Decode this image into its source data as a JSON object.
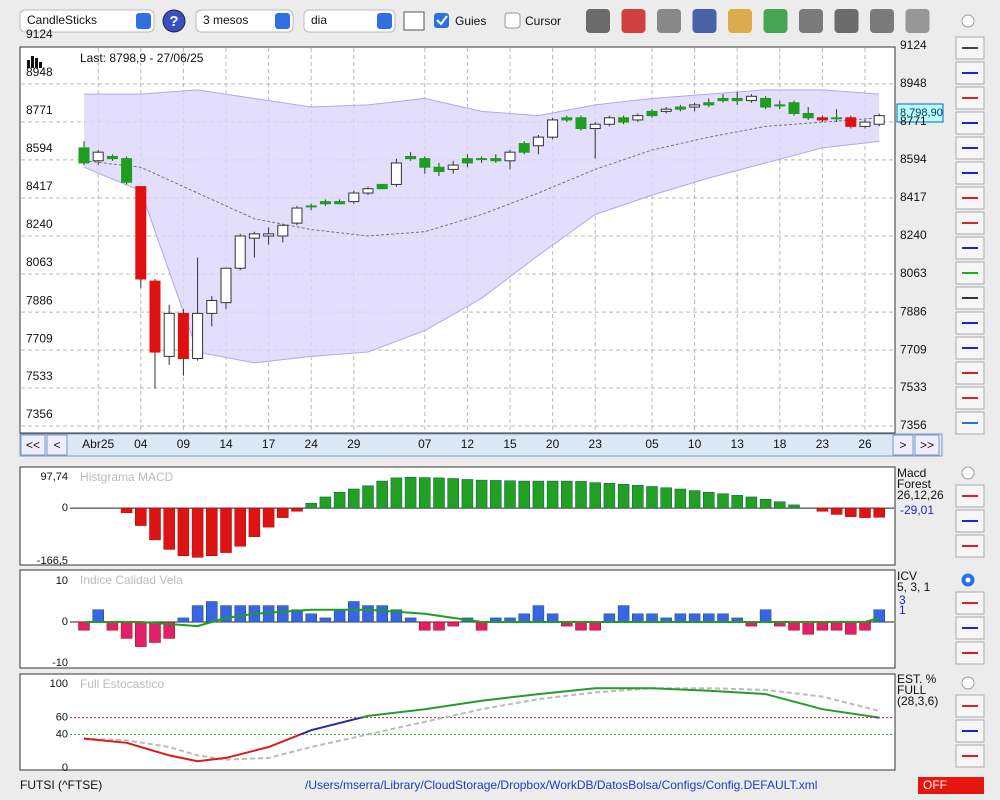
{
  "toolbar": {
    "chart_type": "CandleSticks",
    "period": "3 mesos",
    "interval": "dia",
    "guides": {
      "label": "Guies",
      "checked": true
    },
    "cursor": {
      "label": "Cursor",
      "checked": false
    }
  },
  "price_chart": {
    "type": "candlestick",
    "last": "Last: 8798,9 - 27/06/25",
    "price_tag": "8.798,90",
    "ylim": [
      7356,
      9124
    ],
    "yticks": [
      7356,
      7533,
      7709,
      7886,
      8063,
      8240,
      8417,
      8594,
      8771,
      8948,
      9124
    ],
    "colors": {
      "u": "#ffffff",
      "g": "#1e9e1e",
      "r": "#e01010"
    },
    "candles": [
      [
        8650,
        8680,
        8570,
        8580
      ],
      [
        8590,
        8640,
        8570,
        8630
      ],
      [
        8600,
        8620,
        8590,
        8610
      ],
      [
        8600,
        8610,
        8480,
        8490
      ],
      [
        8470,
        8470,
        8000,
        8040
      ],
      [
        8030,
        8040,
        7530,
        7700
      ],
      [
        7680,
        7920,
        7640,
        7880
      ],
      [
        7880,
        7900,
        7590,
        7670
      ],
      [
        7670,
        8140,
        7660,
        7880
      ],
      [
        7880,
        7960,
        7820,
        7940
      ],
      [
        7930,
        8090,
        7900,
        8090
      ],
      [
        8090,
        8250,
        8080,
        8240
      ],
      [
        8230,
        8260,
        8140,
        8250
      ],
      [
        8240,
        8280,
        8200,
        8250
      ],
      [
        8240,
        8290,
        8210,
        8290
      ],
      [
        8300,
        8380,
        8290,
        8370
      ],
      [
        8380,
        8390,
        8360,
        8380
      ],
      [
        8390,
        8410,
        8380,
        8400
      ],
      [
        8390,
        8410,
        8390,
        8400
      ],
      [
        8400,
        8450,
        8390,
        8440
      ],
      [
        8440,
        8470,
        8430,
        8460
      ],
      [
        8460,
        8480,
        8460,
        8480
      ],
      [
        8480,
        8600,
        8470,
        8580
      ],
      [
        8600,
        8630,
        8590,
        8610
      ],
      [
        8600,
        8610,
        8530,
        8560
      ],
      [
        8560,
        8580,
        8520,
        8540
      ],
      [
        8550,
        8590,
        8530,
        8570
      ],
      [
        8580,
        8620,
        8560,
        8600
      ],
      [
        8600,
        8610,
        8580,
        8600
      ],
      [
        8600,
        8620,
        8580,
        8590
      ],
      [
        8590,
        8640,
        8550,
        8630
      ],
      [
        8630,
        8680,
        8620,
        8670
      ],
      [
        8660,
        8710,
        8620,
        8700
      ],
      [
        8700,
        8790,
        8690,
        8780
      ],
      [
        8780,
        8800,
        8770,
        8790
      ],
      [
        8790,
        8800,
        8730,
        8740
      ],
      [
        8740,
        8770,
        8600,
        8760
      ],
      [
        8760,
        8800,
        8750,
        8790
      ],
      [
        8790,
        8800,
        8760,
        8770
      ],
      [
        8780,
        8810,
        8770,
        8800
      ],
      [
        8800,
        8830,
        8790,
        8820
      ],
      [
        8820,
        8840,
        8810,
        8830
      ],
      [
        8830,
        8850,
        8820,
        8840
      ],
      [
        8840,
        8860,
        8820,
        8850
      ],
      [
        8850,
        8880,
        8840,
        8860
      ],
      [
        8870,
        8900,
        8860,
        8880
      ],
      [
        8880,
        8910,
        8850,
        8870
      ],
      [
        8870,
        8900,
        8860,
        8890
      ],
      [
        8880,
        8890,
        8830,
        8840
      ],
      [
        8850,
        8870,
        8830,
        8850
      ],
      [
        8860,
        8870,
        8800,
        8810
      ],
      [
        8810,
        8840,
        8780,
        8790
      ],
      [
        8790,
        8800,
        8770,
        8780
      ],
      [
        8790,
        8830,
        8770,
        8790
      ],
      [
        8790,
        8800,
        8740,
        8750
      ],
      [
        8750,
        8780,
        8740,
        8770
      ],
      [
        8760,
        8810,
        8750,
        8800
      ]
    ],
    "styles": [
      "g",
      "u",
      "g",
      "g",
      "r",
      "r",
      "u",
      "r",
      "u",
      "u",
      "u",
      "u",
      "u",
      "u",
      "u",
      "u",
      "g",
      "g",
      "g",
      "u",
      "u",
      "g",
      "u",
      "g",
      "g",
      "g",
      "u",
      "g",
      "g",
      "g",
      "u",
      "g",
      "u",
      "u",
      "g",
      "g",
      "u",
      "u",
      "g",
      "u",
      "g",
      "u",
      "g",
      "u",
      "g",
      "g",
      "g",
      "u",
      "g",
      "g",
      "g",
      "g",
      "r",
      "g",
      "r",
      "u",
      "u"
    ],
    "x_labels": [
      {
        "index": 1,
        "label": "Abr25"
      },
      {
        "index": 4,
        "label": "04"
      },
      {
        "index": 7,
        "label": "09"
      },
      {
        "index": 10,
        "label": "14"
      },
      {
        "index": 13,
        "label": "17"
      },
      {
        "index": 16,
        "label": "24"
      },
      {
        "index": 19,
        "label": "29"
      },
      {
        "index": 24,
        "label": "07"
      },
      {
        "index": 27,
        "label": "12"
      },
      {
        "index": 30,
        "label": "15"
      },
      {
        "index": 33,
        "label": "20"
      },
      {
        "index": 36,
        "label": "23"
      },
      {
        "index": 40,
        "label": "05"
      },
      {
        "index": 43,
        "label": "10"
      },
      {
        "index": 46,
        "label": "13"
      },
      {
        "index": 49,
        "label": "18"
      },
      {
        "index": 52,
        "label": "23"
      },
      {
        "index": 55,
        "label": "26"
      }
    ],
    "bands": {
      "x": [
        0,
        4,
        8,
        12,
        16,
        20,
        24,
        28,
        32,
        36,
        40,
        44,
        48,
        52,
        56
      ],
      "upper": [
        8900,
        8900,
        8920,
        8880,
        8840,
        8850,
        8880,
        8820,
        8800,
        8850,
        8880,
        8900,
        8920,
        8920,
        8900
      ],
      "lower": [
        8560,
        8450,
        7700,
        7650,
        7680,
        7700,
        7800,
        7950,
        8150,
        8340,
        8430,
        8510,
        8580,
        8650,
        8680
      ],
      "mid": [
        8590,
        8560,
        8440,
        8320,
        8270,
        8240,
        8260,
        8340,
        8440,
        8550,
        8640,
        8700,
        8750,
        8770,
        8790
      ]
    },
    "nav": [
      "<<",
      "<",
      ">",
      ">>"
    ]
  },
  "macd": {
    "type": "bar",
    "title": "Histgrama MACD",
    "legend": [
      "Macd",
      "Forest",
      "26,12,26"
    ],
    "ylim": [
      -166.5,
      97.74
    ],
    "yticks": [
      {
        "value": -166.5,
        "label": "-166,5"
      },
      0,
      {
        "value": 97.74,
        "label": "97,74"
      }
    ],
    "values": [
      0,
      0,
      0,
      -15,
      -55,
      -100,
      -130,
      -150,
      -155,
      -150,
      -140,
      -120,
      -90,
      -60,
      -30,
      -10,
      15,
      35,
      50,
      60,
      70,
      85,
      95,
      97,
      96,
      95,
      93,
      90,
      88,
      87,
      86,
      85,
      85,
      85,
      85,
      84,
      80,
      78,
      75,
      72,
      68,
      64,
      60,
      55,
      50,
      45,
      40,
      35,
      28,
      20,
      10,
      0,
      -10,
      -20,
      -27,
      -30,
      -29.01
    ],
    "current": {
      "value": -29.01,
      "label": "-29,01"
    }
  },
  "icv": {
    "type": "bar",
    "title": "Indice Calidad Vela",
    "legend": [
      "ICV",
      "5, 3, 1"
    ],
    "ylim": [
      -10,
      10
    ],
    "yticks": [
      -10,
      0,
      10
    ],
    "values": [
      -2,
      3,
      -2,
      -4,
      -6,
      -5,
      -4,
      1,
      4,
      5,
      4,
      4,
      4,
      4,
      4,
      3,
      2,
      1,
      3,
      5,
      4,
      4,
      3,
      1,
      -2,
      -2,
      -1,
      1,
      -2,
      1,
      1,
      2,
      4,
      2,
      -1,
      -2,
      -2,
      2,
      4,
      2,
      2,
      1,
      2,
      2,
      2,
      2,
      1,
      -1,
      3,
      -1,
      -2,
      -3,
      -2,
      -2,
      -3,
      -2,
      3
    ],
    "line": {
      "x": [
        0,
        4,
        8,
        10,
        12,
        16,
        20,
        24,
        28,
        32,
        36,
        40,
        44,
        48,
        52,
        55,
        56
      ],
      "values": [
        0,
        0,
        -1,
        1,
        2,
        3,
        3,
        2,
        0,
        0,
        0,
        0,
        0,
        0,
        0,
        0,
        1
      ]
    },
    "current": [
      3,
      1
    ]
  },
  "stochastic": {
    "type": "line",
    "title": "Full Estocastico",
    "legend": [
      "EST. %",
      "FULL",
      "(28,3,6)"
    ],
    "ylim": [
      0,
      100
    ],
    "yticks": [
      0,
      40,
      60,
      100
    ],
    "x": [
      0,
      3,
      6,
      8,
      10,
      13,
      16,
      20,
      24,
      28,
      32,
      36,
      40,
      44,
      48,
      52,
      56
    ],
    "k": [
      35,
      30,
      15,
      8,
      12,
      25,
      45,
      62,
      70,
      80,
      88,
      95,
      95,
      92,
      88,
      70,
      60
    ],
    "d": [
      35,
      33,
      25,
      15,
      10,
      12,
      25,
      40,
      55,
      70,
      82,
      90,
      95,
      95,
      93,
      85,
      68
    ]
  },
  "status": {
    "symbol": "FUTSI (^FTSE)",
    "path": "/Users/mserra/Library/CloudStorage/Dropbox/WorkDB/DatosBolsa/Configs/Config.DEFAULT.xml",
    "mode": "OFF"
  }
}
